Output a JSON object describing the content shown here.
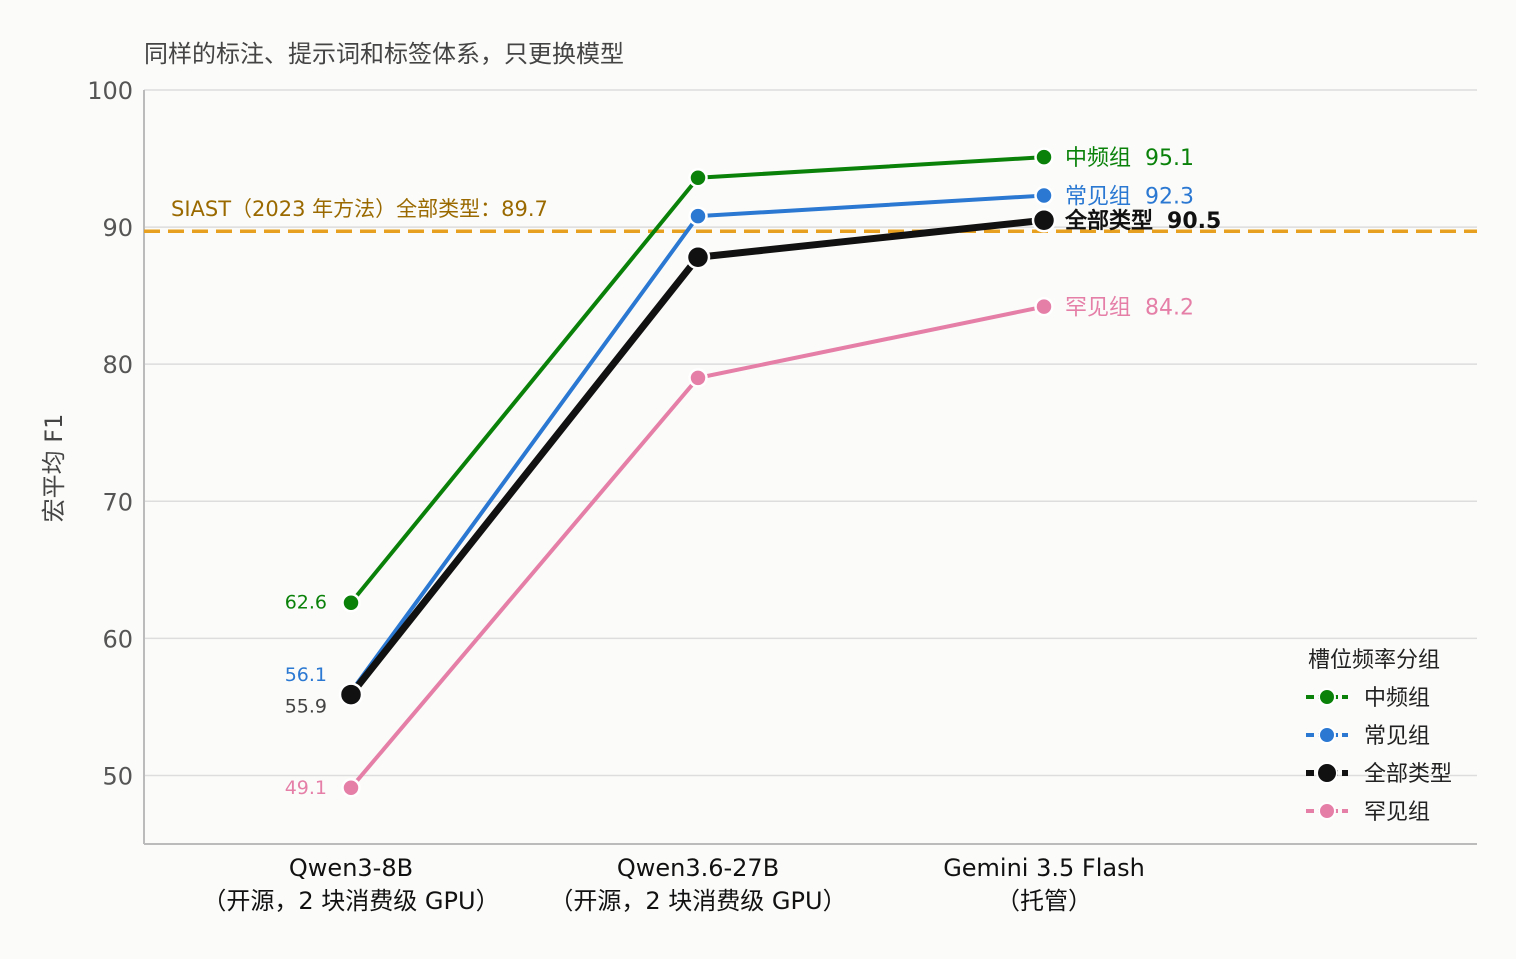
{
  "chart_data": {
    "type": "line",
    "subtitle": "同样的标注、提示词和标签体系，只更换模型",
    "title": "",
    "xlabel": "",
    "ylabel": "宏平均 F1",
    "ylim": [
      45,
      100
    ],
    "yticks": [
      50,
      60,
      70,
      80,
      90,
      100
    ],
    "categories": [
      {
        "line1": "Qwen3-8B",
        "line2": "（开源，2 块消费级 GPU）"
      },
      {
        "line1": "Qwen3.6-27B",
        "line2": "（开源，2 块消费级 GPU）"
      },
      {
        "line1": "Gemini 3.5 Flash",
        "line2": "（托管）"
      }
    ],
    "series": [
      {
        "name": "中频组",
        "values": [
          62.6,
          93.6,
          95.1
        ],
        "color": "#0a820a",
        "start_label": "62.6",
        "end_label": "95.1",
        "bold": false
      },
      {
        "name": "常见组",
        "values": [
          56.1,
          90.8,
          92.3
        ],
        "color": "#2a78d2",
        "start_label": "56.1",
        "end_label": "92.3",
        "bold": false
      },
      {
        "name": "全部类型",
        "values": [
          55.9,
          87.8,
          90.5
        ],
        "color": "#111111",
        "start_label": "55.9",
        "end_label": "90.5",
        "bold": true
      },
      {
        "name": "罕见组",
        "values": [
          49.1,
          79.0,
          84.2
        ],
        "color": "#e57fa8",
        "start_label": "49.1",
        "end_label": "84.2",
        "bold": false
      }
    ],
    "reference_line": {
      "value": 89.7,
      "label": "SIAST（2023 年方法）全部类型：89.7",
      "color": "#e8a020",
      "label_color": "#9a6a00",
      "style": "dashed"
    },
    "grid": "horizontal",
    "legend": {
      "title": "槽位频率分组",
      "placement": "bottom-right"
    }
  }
}
